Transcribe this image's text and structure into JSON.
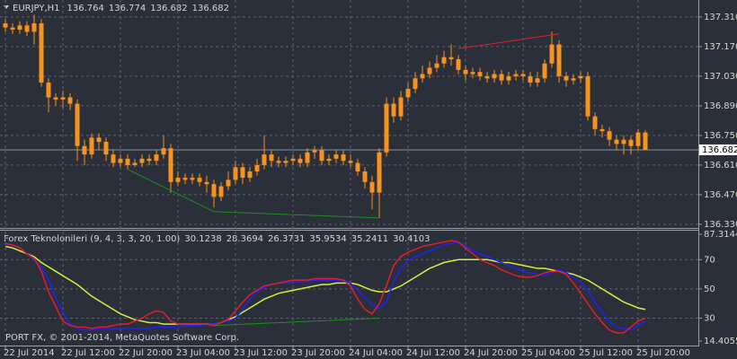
{
  "chart_data": [
    {
      "type": "candlestick",
      "title": "EURJPY,H1",
      "header_values": [
        136.764,
        136.774,
        136.682,
        136.682
      ],
      "color": "#f7931e",
      "grid": true,
      "categories": [
        "22 Jul 2014",
        null,
        null,
        null,
        null,
        null,
        null,
        null,
        "22 Jul 12:00",
        null,
        null,
        null,
        null,
        null,
        null,
        null,
        "22 Jul 20:00",
        null,
        null,
        null,
        null,
        null,
        null,
        null,
        "23 Jul 04:00",
        null,
        null,
        null,
        null,
        null,
        null,
        null,
        "23 Jul 12:00",
        null,
        null,
        null,
        null,
        null,
        null,
        null,
        "23 Jul 20:00",
        null,
        null,
        null,
        null,
        null,
        null,
        null,
        "24 Jul 04:00",
        null,
        null,
        null,
        null,
        null,
        null,
        null,
        "24 Jul 12:00",
        null,
        null,
        null,
        null,
        null,
        null,
        null,
        "24 Jul 20:00",
        null,
        null,
        null,
        null,
        null,
        null,
        null,
        "25 Jul 04:00",
        null,
        null,
        null,
        null,
        null,
        null,
        null,
        "25 Jul 12:00",
        null,
        null,
        null,
        null,
        null,
        null,
        null,
        "25 Jul 20:00",
        null
      ],
      "open": [
        137.28,
        137.26,
        137.25,
        137.27,
        137.24,
        137.28,
        137.0,
        136.93,
        136.92,
        136.93,
        136.9,
        136.7,
        136.66,
        136.74,
        136.72,
        136.66,
        136.62,
        136.64,
        136.61,
        136.62,
        136.64,
        136.63,
        136.66,
        136.69,
        136.53,
        136.55,
        136.54,
        136.55,
        136.53,
        136.52,
        136.46,
        136.51,
        136.54,
        136.6,
        136.55,
        136.58,
        136.61,
        136.66,
        136.63,
        136.62,
        136.63,
        136.64,
        136.62,
        136.67,
        136.68,
        136.63,
        136.64,
        136.66,
        136.63,
        136.62,
        136.58,
        136.53,
        136.48,
        136.67,
        136.9,
        136.84,
        136.93,
        136.97,
        137.02,
        137.04,
        137.07,
        137.09,
        137.12,
        137.11,
        137.06,
        137.04,
        137.05,
        137.03,
        137.02,
        137.04,
        137.01,
        137.03,
        137.04,
        137.03,
        137.0,
        137.02,
        137.09,
        137.18,
        137.03,
        137.01,
        137.02,
        137.03,
        136.84,
        136.78,
        136.77,
        136.73,
        136.71,
        136.73,
        136.7,
        136.764
      ],
      "high": [
        137.3,
        137.28,
        137.29,
        137.29,
        137.32,
        137.3,
        137.02,
        136.95,
        136.96,
        136.95,
        136.92,
        136.73,
        136.76,
        136.76,
        136.74,
        136.68,
        136.66,
        136.66,
        136.64,
        136.66,
        136.66,
        136.68,
        136.75,
        136.71,
        136.58,
        136.57,
        136.57,
        136.57,
        136.56,
        136.54,
        136.53,
        136.58,
        136.63,
        136.62,
        136.6,
        136.64,
        136.75,
        136.68,
        136.65,
        136.65,
        136.66,
        136.66,
        136.69,
        136.7,
        136.7,
        136.66,
        136.68,
        136.68,
        136.66,
        136.64,
        136.6,
        136.56,
        136.69,
        136.93,
        136.93,
        136.96,
        137.0,
        137.05,
        137.08,
        137.1,
        137.13,
        137.15,
        137.18,
        137.13,
        137.08,
        137.07,
        137.07,
        137.05,
        137.06,
        137.06,
        137.05,
        137.06,
        137.06,
        137.05,
        137.05,
        137.11,
        137.24,
        137.2,
        137.05,
        137.04,
        137.05,
        137.05,
        136.86,
        136.8,
        136.79,
        136.75,
        136.75,
        136.75,
        136.78,
        136.774
      ],
      "low": [
        137.24,
        137.23,
        137.23,
        137.22,
        137.18,
        136.98,
        136.86,
        136.89,
        136.88,
        136.87,
        136.63,
        136.61,
        136.64,
        136.68,
        136.63,
        136.6,
        136.6,
        136.59,
        136.6,
        136.6,
        136.61,
        136.61,
        136.64,
        136.48,
        136.51,
        136.52,
        136.52,
        136.51,
        136.48,
        136.41,
        136.44,
        136.49,
        136.52,
        136.52,
        136.53,
        136.56,
        136.59,
        136.6,
        136.6,
        136.6,
        136.61,
        136.6,
        136.6,
        136.64,
        136.61,
        136.61,
        136.62,
        136.61,
        136.6,
        136.56,
        136.5,
        136.4,
        136.36,
        136.65,
        136.81,
        136.82,
        136.91,
        136.95,
        137.0,
        137.02,
        137.05,
        137.07,
        137.08,
        137.04,
        137.01,
        137.02,
        137.01,
        137.0,
        137.0,
        136.99,
        136.99,
        137.01,
        137.01,
        136.98,
        136.98,
        137.0,
        137.07,
        137.0,
        136.98,
        136.99,
        137.0,
        136.82,
        136.75,
        136.74,
        136.7,
        136.68,
        136.66,
        136.66,
        136.68,
        136.682
      ],
      "close": [
        137.26,
        137.25,
        137.27,
        137.24,
        137.28,
        137.0,
        136.93,
        136.92,
        136.93,
        136.9,
        136.7,
        136.66,
        136.74,
        136.72,
        136.66,
        136.62,
        136.64,
        136.61,
        136.62,
        136.64,
        136.63,
        136.66,
        136.69,
        136.53,
        136.55,
        136.54,
        136.55,
        136.53,
        136.52,
        136.46,
        136.51,
        136.54,
        136.6,
        136.55,
        136.58,
        136.61,
        136.66,
        136.63,
        136.62,
        136.63,
        136.64,
        136.62,
        136.67,
        136.68,
        136.63,
        136.64,
        136.66,
        136.63,
        136.62,
        136.58,
        136.53,
        136.48,
        136.67,
        136.9,
        136.84,
        136.93,
        136.97,
        137.02,
        137.04,
        137.07,
        137.09,
        137.12,
        137.11,
        137.06,
        137.04,
        137.05,
        137.03,
        137.02,
        137.04,
        137.01,
        137.03,
        137.04,
        137.03,
        137.0,
        137.02,
        137.09,
        137.18,
        137.03,
        137.01,
        137.02,
        137.03,
        136.84,
        136.78,
        136.77,
        136.73,
        136.71,
        136.73,
        136.7,
        136.764,
        136.682
      ],
      "ylim": [
        136.317,
        137.386
      ],
      "yticks": [
        {
          "value": 137.31,
          "label": "137.310"
        },
        {
          "value": 137.17,
          "label": "137.170"
        },
        {
          "value": 137.03,
          "label": "137.030"
        },
        {
          "value": 136.89,
          "label": "136.890"
        },
        {
          "value": 136.75,
          "label": "136.750"
        },
        {
          "value": 136.61,
          "label": "136.610"
        },
        {
          "value": 136.47,
          "label": "136.470"
        },
        {
          "value": 136.33,
          "label": "136.330"
        }
      ],
      "last_price": 136.682,
      "trendlines": [
        {
          "color": "#e0202a",
          "points": [
            [
              63,
              137.16
            ],
            [
              77,
              137.23
            ]
          ]
        },
        {
          "color": "#1f8f1f",
          "points": [
            [
              17,
              136.59
            ],
            [
              29,
              136.39
            ],
            [
              52,
              136.36
            ]
          ]
        }
      ]
    },
    {
      "type": "line",
      "title": "Forex Teknolonileri (9, 4, 3, 3, 20, 1.00)",
      "readout": [
        30.1238,
        28.3694,
        26.3731,
        35.9534,
        35.2411,
        30.4103
      ],
      "annotation": "PORT FX, © 2001-2014, MetaQuotes Software Corp.",
      "ylim": [
        14.4055,
        87.3144
      ],
      "yticks": [
        87.3144,
        70,
        50,
        30,
        14.4055
      ],
      "levels": [
        70,
        50,
        30
      ],
      "series": [
        {
          "color": "#d4f03c",
          "values": [
            79,
            78,
            76,
            74,
            72,
            68,
            65,
            62,
            59,
            56,
            53,
            49,
            45,
            42,
            39,
            36,
            33,
            31,
            29,
            28,
            27,
            27,
            26,
            26,
            26,
            26,
            26,
            26,
            26,
            26,
            27,
            29,
            31,
            34,
            37,
            40,
            43,
            45,
            47,
            48,
            49,
            50,
            51,
            52,
            53,
            53,
            54,
            54,
            54,
            53,
            51,
            49,
            48,
            48,
            50,
            52,
            55,
            58,
            61,
            64,
            66,
            68,
            69,
            70,
            70,
            70,
            70,
            70,
            69,
            68,
            68,
            67,
            66,
            65,
            64,
            64,
            63,
            62,
            61,
            60,
            58,
            56,
            53,
            50,
            47,
            44,
            41,
            39,
            37,
            36
          ]
        },
        {
          "color": "#2020ff",
          "values": [
            80,
            80,
            78,
            74,
            70,
            65,
            56,
            44,
            34,
            26,
            23,
            22,
            22,
            23,
            23,
            23,
            23,
            23,
            23,
            23,
            23,
            24,
            24,
            24,
            24,
            25,
            25,
            25,
            26,
            26,
            27,
            28,
            30,
            36,
            43,
            48,
            51,
            53,
            54,
            54,
            54,
            55,
            55,
            56,
            56,
            56,
            56,
            56,
            54,
            49,
            44,
            39,
            37,
            41,
            55,
            64,
            69,
            72,
            74,
            76,
            78,
            80,
            81,
            82,
            79,
            76,
            74,
            72,
            70,
            68,
            66,
            64,
            62,
            61,
            60,
            59,
            61,
            63,
            61,
            58,
            55,
            49,
            41,
            34,
            28,
            24,
            23,
            22,
            25,
            28
          ]
        },
        {
          "color": "#e0202a",
          "values": [
            81,
            80,
            78,
            74,
            71,
            62,
            48,
            38,
            28,
            25,
            24,
            24,
            23,
            24,
            24,
            25,
            26,
            26,
            28,
            30,
            33,
            35,
            34,
            28,
            26,
            26,
            26,
            26,
            26,
            25,
            27,
            29,
            35,
            41,
            46,
            49,
            52,
            53,
            54,
            55,
            56,
            56,
            56,
            57,
            57,
            57,
            57,
            56,
            52,
            43,
            36,
            33,
            40,
            52,
            66,
            72,
            75,
            77,
            79,
            80,
            81,
            82,
            83,
            82,
            78,
            74,
            70,
            68,
            66,
            63,
            61,
            59,
            58,
            58,
            59,
            61,
            62,
            62,
            60,
            54,
            47,
            40,
            33,
            27,
            22,
            20,
            20,
            24,
            28,
            30
          ]
        }
      ],
      "trendlines": [
        {
          "color": "#1f8f1f",
          "points": [
            [
              29,
              25
            ],
            [
              52,
              30
            ]
          ]
        }
      ]
    }
  ]
}
